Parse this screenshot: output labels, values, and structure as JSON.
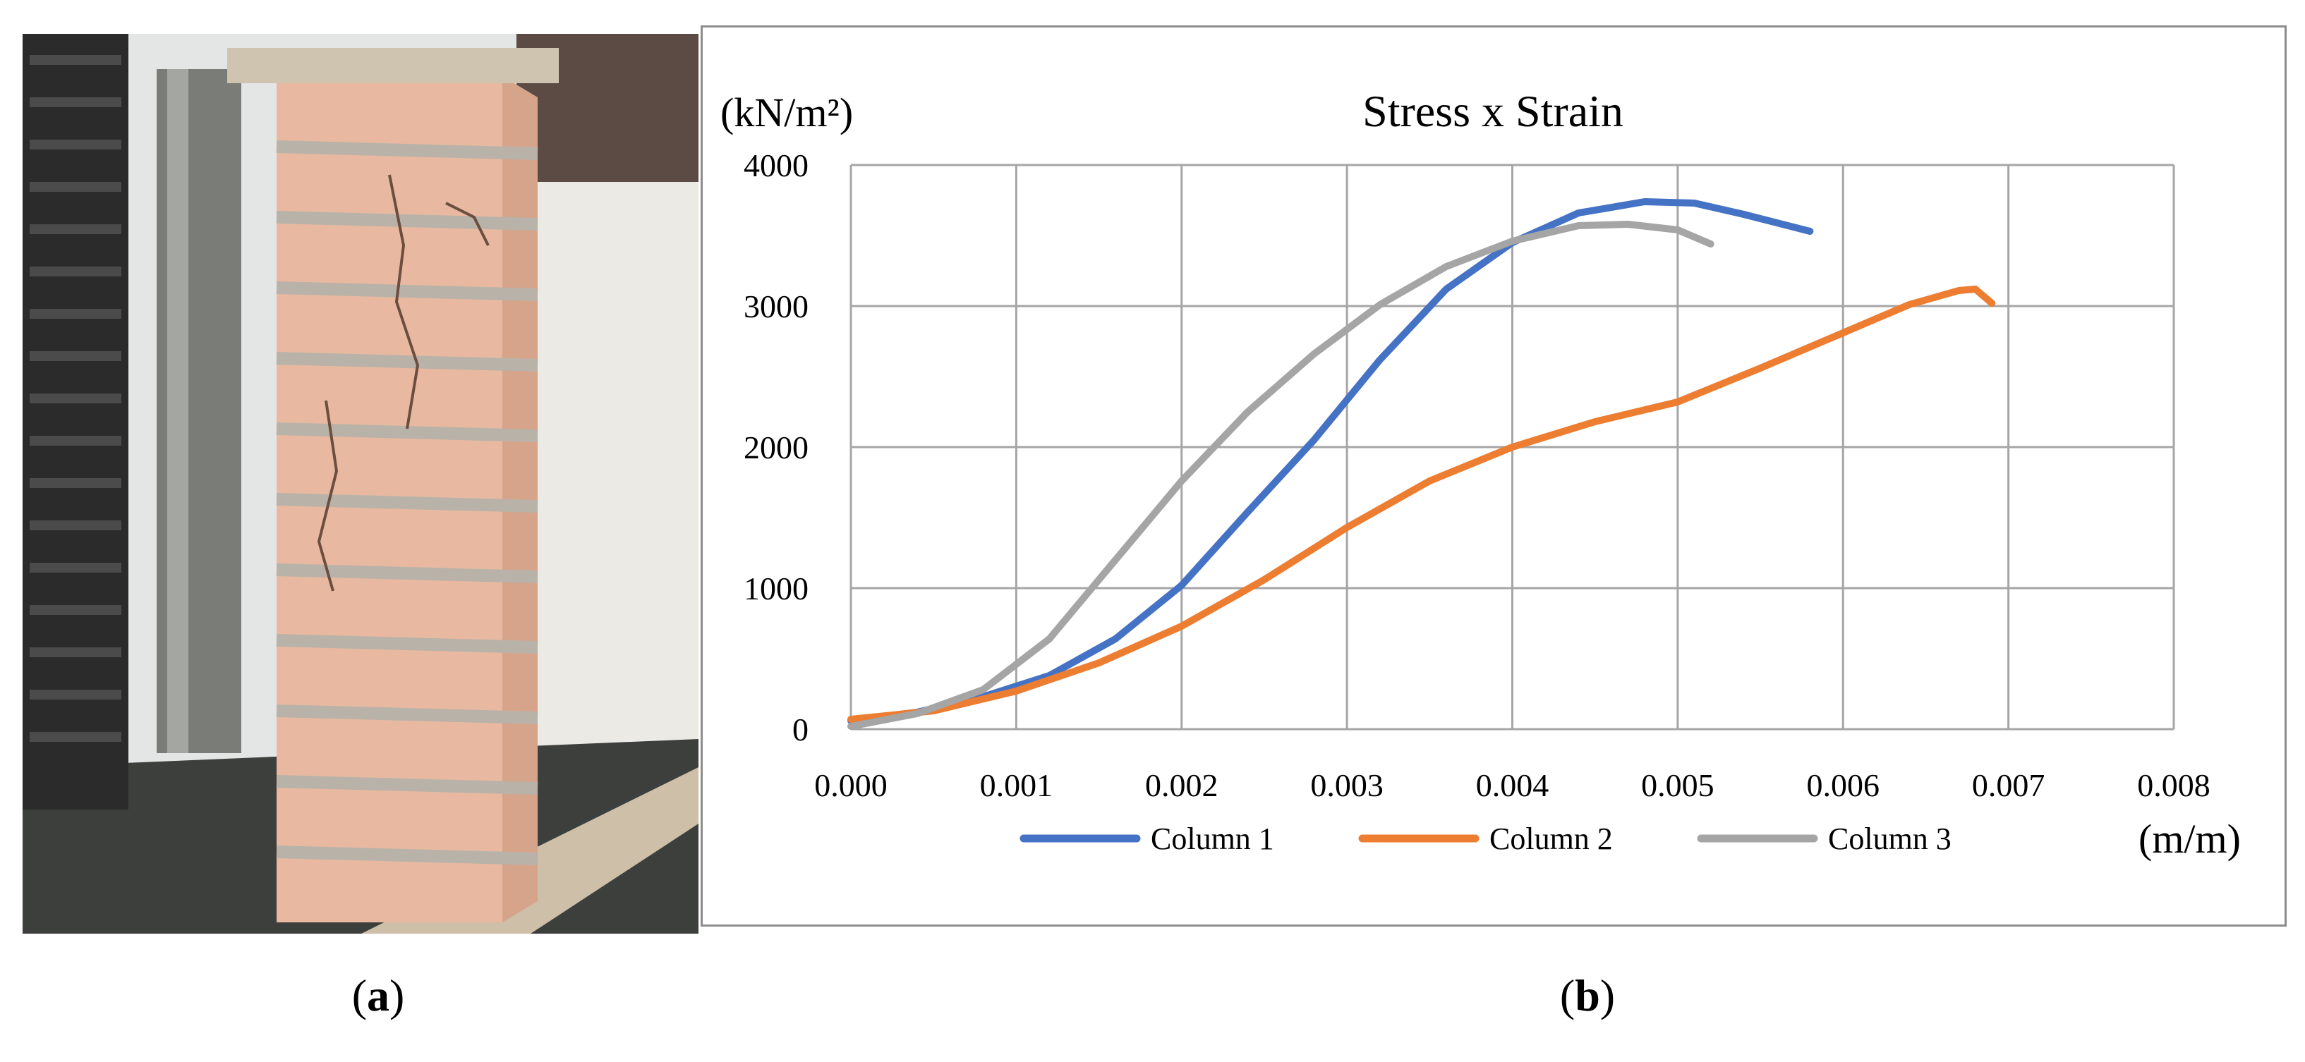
{
  "captions": {
    "a": "a",
    "b": "b"
  },
  "photo": {
    "depicts": "brick-column-compression-test-photo"
  },
  "chart_data": {
    "type": "line",
    "title": "Stress x Strain",
    "ylabel": "(kN/m²)",
    "xlabel": "(m/m)",
    "xlim": [
      0,
      0.008
    ],
    "ylim": [
      0,
      4000
    ],
    "xticks": [
      "0.000",
      "0.001",
      "0.002",
      "0.003",
      "0.004",
      "0.005",
      "0.006",
      "0.007",
      "0.008"
    ],
    "yticks": [
      "0",
      "1000",
      "2000",
      "3000",
      "4000"
    ],
    "grid": true,
    "legend_position": "bottom",
    "series": [
      {
        "name": "Column 1",
        "color": "#4472c4",
        "points": [
          [
            0.0,
            60
          ],
          [
            0.0004,
            120
          ],
          [
            0.0008,
            230
          ],
          [
            0.0012,
            380
          ],
          [
            0.0016,
            640
          ],
          [
            0.002,
            1020
          ],
          [
            0.0024,
            1540
          ],
          [
            0.0028,
            2050
          ],
          [
            0.0032,
            2620
          ],
          [
            0.0036,
            3120
          ],
          [
            0.004,
            3450
          ],
          [
            0.0044,
            3660
          ],
          [
            0.0048,
            3740
          ],
          [
            0.0051,
            3730
          ],
          [
            0.0054,
            3650
          ],
          [
            0.0058,
            3530
          ]
        ]
      },
      {
        "name": "Column 2",
        "color": "#ed7d31",
        "points": [
          [
            0.0,
            70
          ],
          [
            0.0005,
            130
          ],
          [
            0.001,
            270
          ],
          [
            0.0015,
            470
          ],
          [
            0.002,
            730
          ],
          [
            0.0025,
            1060
          ],
          [
            0.003,
            1430
          ],
          [
            0.0035,
            1760
          ],
          [
            0.004,
            2000
          ],
          [
            0.0045,
            2180
          ],
          [
            0.005,
            2320
          ],
          [
            0.0055,
            2560
          ],
          [
            0.006,
            2810
          ],
          [
            0.0064,
            3010
          ],
          [
            0.0067,
            3110
          ],
          [
            0.0068,
            3120
          ],
          [
            0.0069,
            3020
          ]
        ]
      },
      {
        "name": "Column 3",
        "color": "#a5a5a5",
        "points": [
          [
            0.0,
            20
          ],
          [
            0.0004,
            110
          ],
          [
            0.0008,
            280
          ],
          [
            0.0012,
            640
          ],
          [
            0.0016,
            1200
          ],
          [
            0.002,
            1760
          ],
          [
            0.0024,
            2250
          ],
          [
            0.0028,
            2660
          ],
          [
            0.0032,
            3010
          ],
          [
            0.0036,
            3280
          ],
          [
            0.004,
            3460
          ],
          [
            0.0044,
            3570
          ],
          [
            0.0047,
            3580
          ],
          [
            0.005,
            3540
          ],
          [
            0.0052,
            3440
          ]
        ]
      }
    ]
  }
}
